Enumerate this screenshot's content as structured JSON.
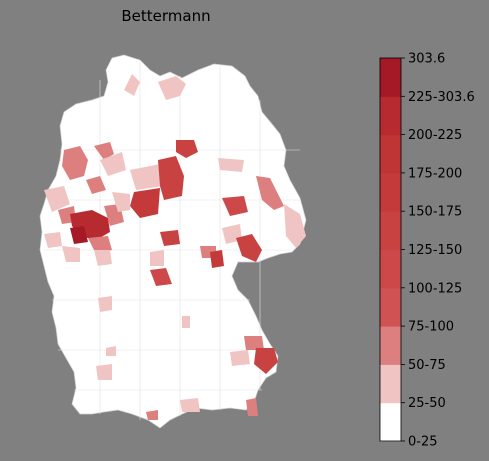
{
  "title": "Bettermann",
  "legend": {
    "ticks": [
      "0-25",
      "25-50",
      "50-75",
      "75-100",
      "100-125",
      "125-150",
      "150-175",
      "175-200",
      "200-225",
      "225-303.6",
      "303.6"
    ],
    "colors": [
      "#ffffff",
      "#f1c4c4",
      "#dd7f7f",
      "#d05252",
      "#cd4949",
      "#c94242",
      "#c43a3a",
      "#bf3434",
      "#b72a30",
      "#a51825"
    ]
  },
  "colors": {
    "background": "#808080",
    "land": "#ffffff",
    "boundary": "#d0d0d0"
  }
}
